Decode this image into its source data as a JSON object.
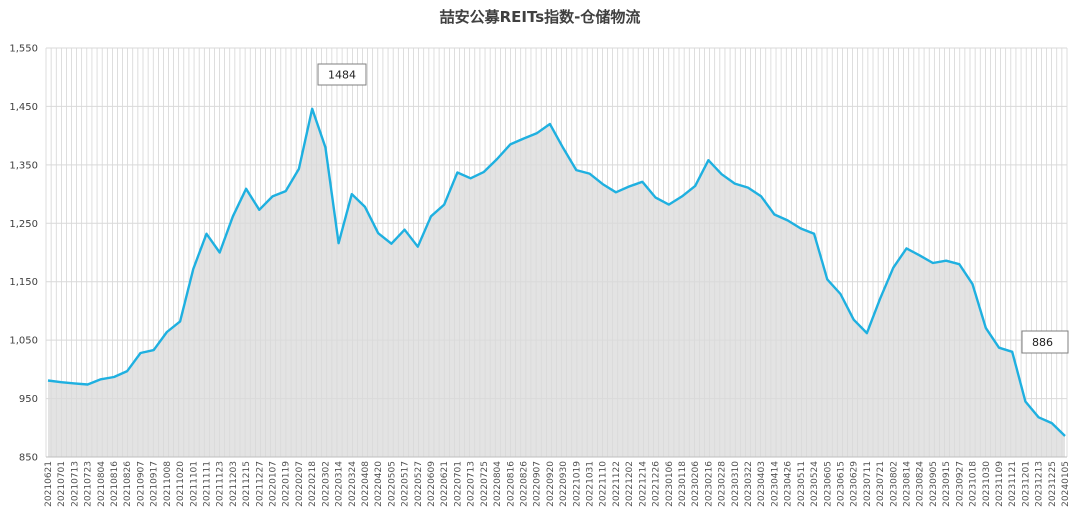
{
  "chart_data": {
    "type": "area",
    "title": "喆安公募REITs指数-仓储物流",
    "xlabel": "",
    "ylabel": "",
    "ylim": [
      850,
      1550
    ],
    "yticks": [
      850,
      950,
      1050,
      1150,
      1250,
      1350,
      1450,
      1550
    ],
    "ytick_labels": [
      "850",
      "950",
      "1,050",
      "1,150",
      "1,250",
      "1,350",
      "1,450",
      "1,550"
    ],
    "grid": true,
    "legend": "none",
    "colors": {
      "line": "#1fb0e0",
      "fill": "#d9d9d9",
      "grid": "#d9d9d9",
      "minor_grid": "#c8c8c8",
      "axis": "#bfbfbf"
    },
    "categories": [
      "20210621",
      "20210701",
      "20210713",
      "20210723",
      "20210804",
      "20210816",
      "20210826",
      "20210907",
      "20210917",
      "20211008",
      "20211020",
      "20211101",
      "20211111",
      "20211123",
      "20211203",
      "20211215",
      "20211227",
      "20220107",
      "20220119",
      "20220207",
      "20220218",
      "20220302",
      "20220314",
      "20220324",
      "20220408",
      "20220420",
      "20220505",
      "20220517",
      "20220527",
      "20220609",
      "20220621",
      "20220701",
      "20220713",
      "20220725",
      "20220804",
      "20220816",
      "20220826",
      "20220907",
      "20220920",
      "20220930",
      "20221019",
      "20221031",
      "20221110",
      "20221122",
      "20221202",
      "20221214",
      "20221226",
      "20230106",
      "20230118",
      "20230206",
      "20230216",
      "20230228",
      "20230310",
      "20230322",
      "20230403",
      "20230414",
      "20230426",
      "20230511",
      "20230524",
      "20230605",
      "20230615",
      "20230629",
      "20230711",
      "20230721",
      "20230802",
      "20230814",
      "20230824",
      "20230905",
      "20230915",
      "20230927",
      "20231018",
      "20231030",
      "20231109",
      "20231121",
      "20231201",
      "20231213",
      "20231225",
      "20240105"
    ],
    "values": [
      981,
      978,
      976,
      974,
      983,
      987,
      997,
      1028,
      1033,
      1064,
      1082,
      1172,
      1232,
      1200,
      1262,
      1309,
      1273,
      1296,
      1305,
      1343,
      1446,
      1380,
      1216,
      1300,
      1278,
      1233,
      1215,
      1239,
      1210,
      1262,
      1282,
      1337,
      1327,
      1338,
      1360,
      1385,
      1395,
      1404,
      1420,
      1379,
      1341,
      1335,
      1317,
      1303,
      1313,
      1321,
      1294,
      1282,
      1296,
      1314,
      1358,
      1334,
      1318,
      1311,
      1296,
      1265,
      1255,
      1241,
      1232,
      1154,
      1129,
      1085,
      1062,
      1121,
      1174,
      1207,
      1195,
      1182,
      1186,
      1180,
      1146,
      1071,
      1037,
      1030,
      945,
      918,
      908,
      886
    ],
    "annotations": [
      {
        "label": "1484",
        "x": "20220210",
        "y": 1484
      },
      {
        "label": "886",
        "x": "20240105",
        "y": 886
      }
    ]
  }
}
